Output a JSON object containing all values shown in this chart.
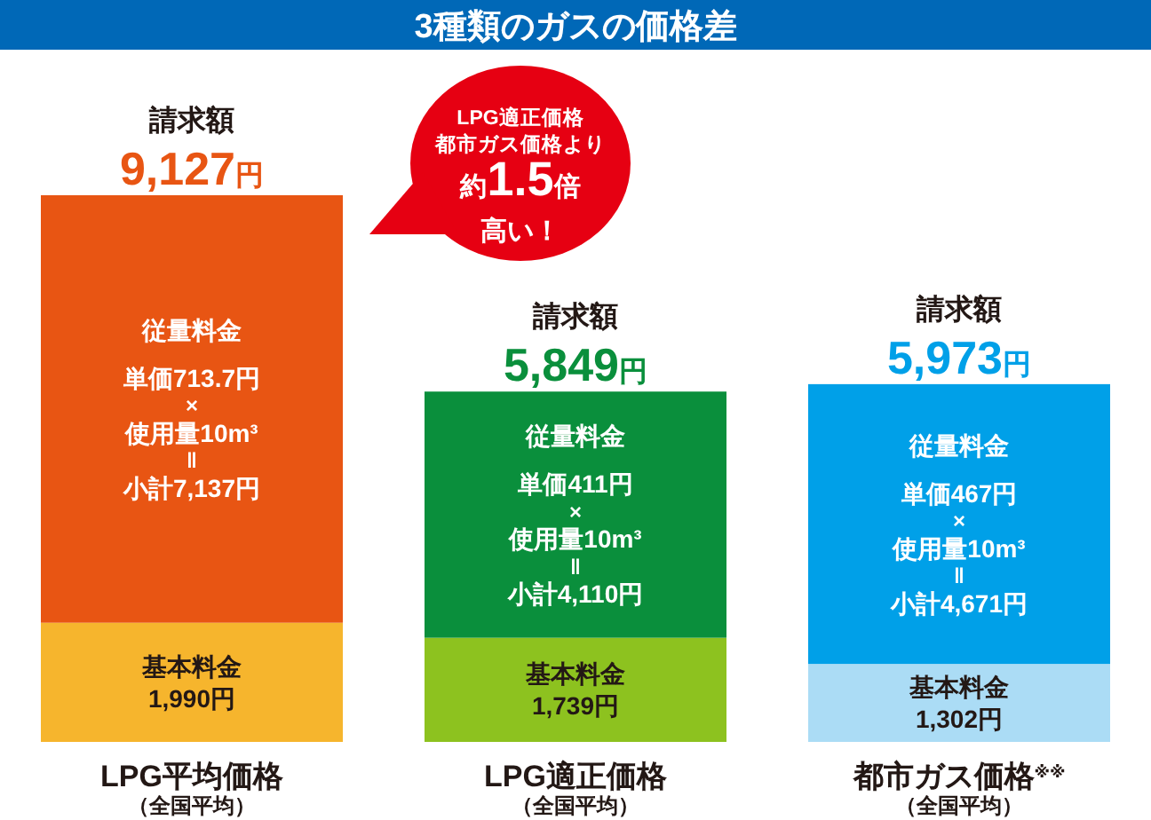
{
  "chart_data": {
    "type": "bar",
    "title": "3種類のガスの価格差",
    "stacked": true,
    "legend": false,
    "categories": [
      "LPG平均価格（全国平均）",
      "LPG適正価格（全国平均）",
      "都市ガス価格$^{※※}$（全国平均）"
    ],
    "series": [
      {
        "name": "基本料金",
        "colors": [
          "#f6b52d",
          "#8dc21f",
          "#abdcf5"
        ],
        "values": [
          1990,
          1739,
          1302
        ],
        "value_labels": [
          "1,990円",
          "1,739円",
          "1,302円"
        ]
      },
      {
        "name": "従量料金",
        "colors": [
          "#e85513",
          "#0a8f3c",
          "#00a0e8"
        ],
        "values": [
          7137,
          4110,
          4671
        ],
        "value_labels": [
          "単価713.7円\n×\n使用量10m³\n‖\n小計7,137円",
          "単価411円\n×\n使用量10m³\n‖\n小計4,110円",
          "単価467円\n×\n使用量10m³\n‖\n小計4,671円"
        ]
      }
    ],
    "totals": [
      "請求額\n9,127円",
      "請求額\n5,849円",
      "請求額\n5,973円"
    ],
    "annotations": [
      "LPG適正価格",
      "都市ガス価格より",
      "約1.5倍",
      "高い！"
    ]
  }
}
